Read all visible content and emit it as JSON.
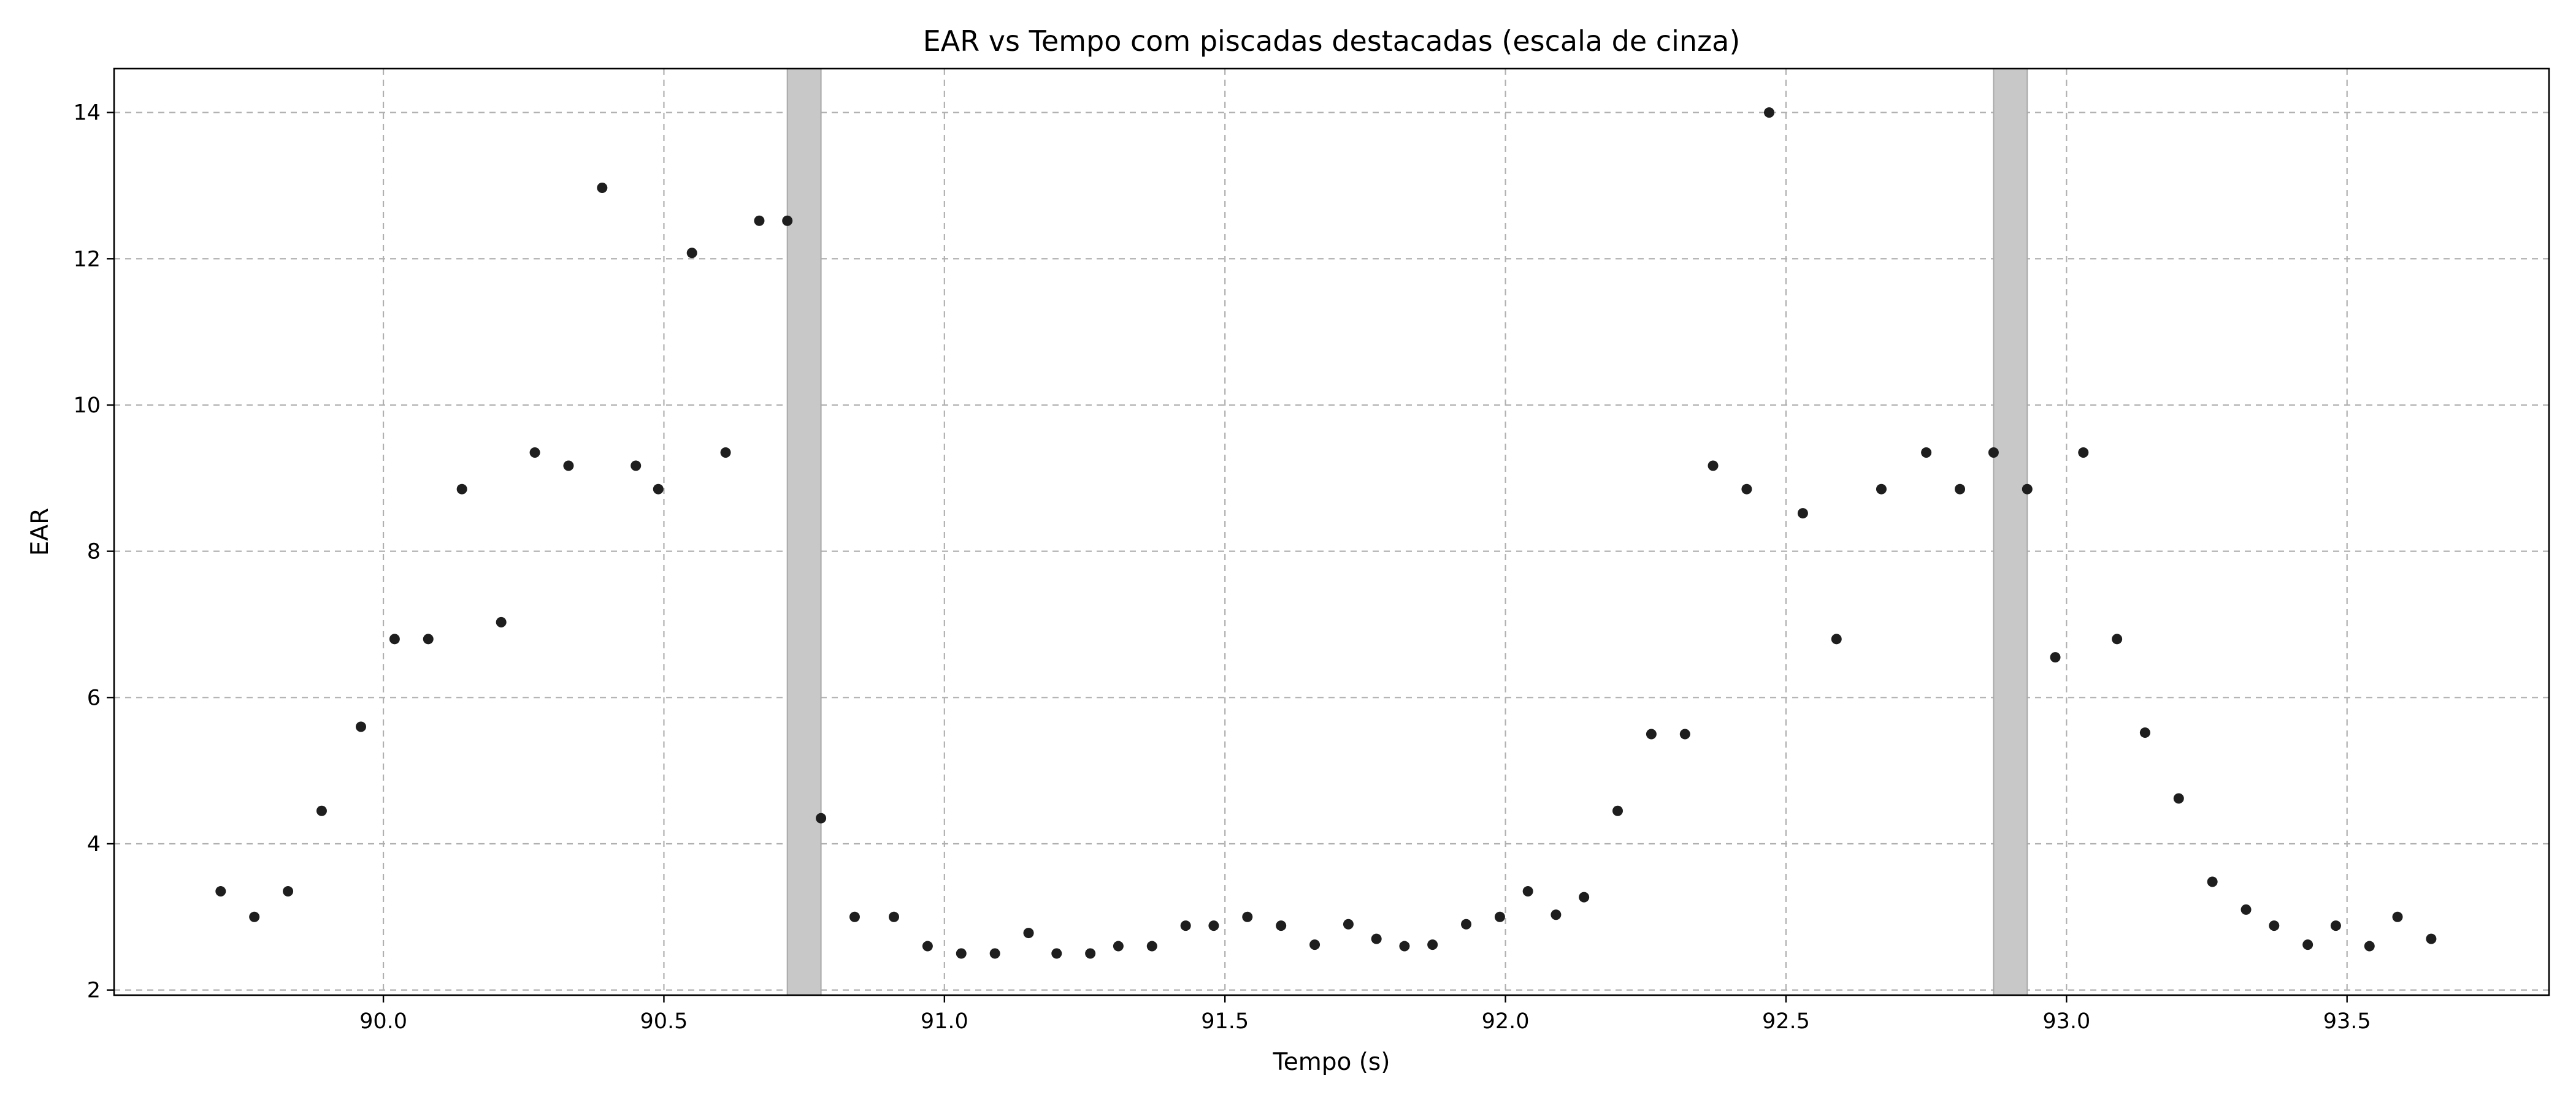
{
  "chart_data": {
    "type": "scatter",
    "title": "EAR vs Tempo com piscadas destacadas (escala de cinza)",
    "xlabel": "Tempo (s)",
    "ylabel": "EAR",
    "xlim": [
      89.52,
      93.86
    ],
    "ylim": [
      1.93,
      14.6
    ],
    "xticks": [
      90.0,
      90.5,
      91.0,
      91.5,
      92.0,
      92.5,
      93.0,
      93.5
    ],
    "xtick_labels": [
      "90.0",
      "90.5",
      "91.0",
      "91.5",
      "92.0",
      "92.5",
      "93.0",
      "93.5"
    ],
    "yticks": [
      2,
      4,
      6,
      8,
      10,
      12,
      14
    ],
    "ytick_labels": [
      "2",
      "4",
      "6",
      "8",
      "10",
      "12",
      "14"
    ],
    "grid": true,
    "colors": {
      "points": "#1e1e1e",
      "blink_band": "#c8c8c8",
      "grid": "#b0b0b0"
    },
    "blink_intervals": [
      [
        90.72,
        90.78
      ],
      [
        92.87,
        92.93
      ]
    ],
    "points": [
      {
        "x": 89.71,
        "y": 3.35
      },
      {
        "x": 89.77,
        "y": 3.0
      },
      {
        "x": 89.83,
        "y": 3.35
      },
      {
        "x": 89.89,
        "y": 4.45
      },
      {
        "x": 89.96,
        "y": 5.6
      },
      {
        "x": 90.02,
        "y": 6.8
      },
      {
        "x": 90.08,
        "y": 6.8
      },
      {
        "x": 90.14,
        "y": 8.85
      },
      {
        "x": 90.21,
        "y": 7.03
      },
      {
        "x": 90.27,
        "y": 9.35
      },
      {
        "x": 90.33,
        "y": 9.17
      },
      {
        "x": 90.39,
        "y": 12.97
      },
      {
        "x": 90.45,
        "y": 9.17
      },
      {
        "x": 90.49,
        "y": 8.85
      },
      {
        "x": 90.55,
        "y": 12.08
      },
      {
        "x": 90.61,
        "y": 9.35
      },
      {
        "x": 90.67,
        "y": 12.52
      },
      {
        "x": 90.72,
        "y": 12.52
      },
      {
        "x": 90.78,
        "y": 4.35
      },
      {
        "x": 90.84,
        "y": 3.0
      },
      {
        "x": 90.91,
        "y": 3.0
      },
      {
        "x": 90.97,
        "y": 2.6
      },
      {
        "x": 91.03,
        "y": 2.5
      },
      {
        "x": 91.09,
        "y": 2.5
      },
      {
        "x": 91.15,
        "y": 2.78
      },
      {
        "x": 91.2,
        "y": 2.5
      },
      {
        "x": 91.26,
        "y": 2.5
      },
      {
        "x": 91.31,
        "y": 2.6
      },
      {
        "x": 91.37,
        "y": 2.6
      },
      {
        "x": 91.43,
        "y": 2.88
      },
      {
        "x": 91.48,
        "y": 2.88
      },
      {
        "x": 91.54,
        "y": 3.0
      },
      {
        "x": 91.6,
        "y": 2.88
      },
      {
        "x": 91.66,
        "y": 2.62
      },
      {
        "x": 91.72,
        "y": 2.9
      },
      {
        "x": 91.77,
        "y": 2.7
      },
      {
        "x": 91.82,
        "y": 2.6
      },
      {
        "x": 91.87,
        "y": 2.62
      },
      {
        "x": 91.93,
        "y": 2.9
      },
      {
        "x": 91.99,
        "y": 3.0
      },
      {
        "x": 92.04,
        "y": 3.35
      },
      {
        "x": 92.09,
        "y": 3.03
      },
      {
        "x": 92.14,
        "y": 3.27
      },
      {
        "x": 92.2,
        "y": 4.45
      },
      {
        "x": 92.26,
        "y": 5.5
      },
      {
        "x": 92.32,
        "y": 5.5
      },
      {
        "x": 92.37,
        "y": 9.17
      },
      {
        "x": 92.43,
        "y": 8.85
      },
      {
        "x": 92.47,
        "y": 14.0
      },
      {
        "x": 92.53,
        "y": 8.52
      },
      {
        "x": 92.59,
        "y": 6.8
      },
      {
        "x": 92.67,
        "y": 8.85
      },
      {
        "x": 92.75,
        "y": 9.35
      },
      {
        "x": 92.81,
        "y": 8.85
      },
      {
        "x": 92.87,
        "y": 9.35
      },
      {
        "x": 92.93,
        "y": 8.85
      },
      {
        "x": 92.98,
        "y": 6.55
      },
      {
        "x": 93.03,
        "y": 9.35
      },
      {
        "x": 93.09,
        "y": 6.8
      },
      {
        "x": 93.14,
        "y": 5.52
      },
      {
        "x": 93.2,
        "y": 4.62
      },
      {
        "x": 93.26,
        "y": 3.48
      },
      {
        "x": 93.32,
        "y": 3.1
      },
      {
        "x": 93.37,
        "y": 2.88
      },
      {
        "x": 93.43,
        "y": 2.62
      },
      {
        "x": 93.48,
        "y": 2.88
      },
      {
        "x": 93.54,
        "y": 2.6
      },
      {
        "x": 93.59,
        "y": 3.0
      },
      {
        "x": 93.65,
        "y": 2.7
      }
    ]
  }
}
